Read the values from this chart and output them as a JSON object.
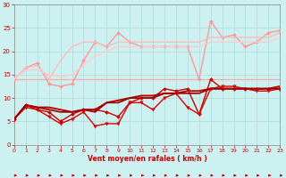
{
  "background_color": "#cdf0f0",
  "grid_color": "#aadddd",
  "xlabel": "Vent moyen/en rafales ( km/h )",
  "xlabel_color": "#cc0000",
  "tick_color": "#cc0000",
  "ylim": [
    0,
    30
  ],
  "xlim": [
    0,
    23
  ],
  "yticks": [
    0,
    5,
    10,
    15,
    20,
    25,
    30
  ],
  "xticks": [
    0,
    1,
    2,
    3,
    4,
    5,
    6,
    7,
    8,
    9,
    10,
    11,
    12,
    13,
    14,
    15,
    16,
    17,
    18,
    19,
    20,
    21,
    22,
    23
  ],
  "series": [
    {
      "x": [
        0,
        1,
        2,
        3,
        4,
        5,
        6,
        7,
        8,
        9,
        10,
        11,
        12,
        13,
        14,
        15,
        16,
        17,
        18,
        19,
        20,
        21,
        22,
        23
      ],
      "y": [
        14,
        14,
        14,
        14,
        14,
        14,
        14,
        14,
        14,
        14,
        14,
        14,
        14,
        14,
        14,
        14,
        14,
        14,
        14,
        14,
        14,
        14,
        14,
        14
      ],
      "color": "#ffaaaa",
      "lw": 0.9,
      "marker": null
    },
    {
      "x": [
        0,
        1,
        2,
        3,
        4,
        5,
        6,
        7,
        8,
        9,
        10,
        11,
        12,
        13,
        14,
        15,
        16,
        17,
        18,
        19,
        20,
        21,
        22,
        23
      ],
      "y": [
        5.5,
        8.5,
        7.5,
        7,
        5,
        6.5,
        7.5,
        7.5,
        7,
        6,
        9,
        10,
        10,
        12,
        11.5,
        12,
        6.5,
        14,
        12,
        12,
        12,
        12,
        12,
        12
      ],
      "color": "#cc0000",
      "lw": 1.0,
      "marker": "D",
      "ms": 2.0
    },
    {
      "x": [
        0,
        1,
        2,
        3,
        4,
        5,
        6,
        7,
        8,
        9,
        10,
        11,
        12,
        13,
        14,
        15,
        16,
        17,
        18,
        19,
        20,
        21,
        22,
        23
      ],
      "y": [
        5.5,
        8,
        7.5,
        6,
        4.5,
        5.5,
        7,
        4,
        4.5,
        4.5,
        9,
        9,
        7.5,
        10,
        11,
        8,
        6.5,
        12,
        12.5,
        12.5,
        12,
        11.5,
        11.5,
        12
      ],
      "color": "#dd0000",
      "lw": 1.0,
      "marker": "v",
      "ms": 2.5
    },
    {
      "x": [
        0,
        1,
        2,
        3,
        4,
        5,
        6,
        7,
        8,
        9,
        10,
        11,
        12,
        13,
        14,
        15,
        16,
        17,
        18,
        19,
        20,
        21,
        22,
        23
      ],
      "y": [
        5.5,
        8.5,
        8,
        8,
        7.5,
        7,
        7.5,
        7.5,
        9,
        9.5,
        10,
        10.5,
        10.5,
        11,
        11,
        11.5,
        11.5,
        12,
        12,
        12,
        12,
        12,
        12,
        12.5
      ],
      "color": "#bb0000",
      "lw": 1.4,
      "marker": null
    },
    {
      "x": [
        0,
        1,
        2,
        3,
        4,
        5,
        6,
        7,
        8,
        9,
        10,
        11,
        12,
        13,
        14,
        15,
        16,
        17,
        18,
        19,
        20,
        21,
        22,
        23
      ],
      "y": [
        5.5,
        8.5,
        8,
        7.5,
        7,
        7,
        7.5,
        7,
        9,
        9,
        10,
        10,
        10,
        11,
        11,
        11,
        11,
        12,
        12,
        12,
        12,
        12,
        12,
        12
      ],
      "color": "#990000",
      "lw": 1.2,
      "marker": null
    },
    {
      "x": [
        0,
        1,
        2,
        3,
        4,
        5,
        6,
        7,
        8,
        9,
        10,
        11,
        12,
        13,
        14,
        15,
        16,
        17,
        18,
        19,
        20,
        21,
        22,
        23
      ],
      "y": [
        14,
        16.5,
        17.5,
        13,
        12.5,
        13,
        18,
        22,
        21,
        24,
        22,
        21,
        21,
        21,
        21,
        21,
        14,
        26.5,
        23,
        23.5,
        21,
        22,
        24,
        24.5
      ],
      "color": "#ff9999",
      "lw": 1.0,
      "marker": "D",
      "ms": 2.0
    },
    {
      "x": [
        0,
        1,
        2,
        3,
        4,
        5,
        6,
        7,
        8,
        9,
        10,
        11,
        12,
        13,
        14,
        15,
        16,
        17,
        18,
        19,
        20,
        21,
        22,
        23
      ],
      "y": [
        14,
        16.5,
        17,
        14,
        18,
        21,
        22,
        22,
        21,
        22,
        22,
        22,
        22,
        22,
        22,
        22,
        22,
        23,
        23,
        23,
        23,
        23,
        23,
        24
      ],
      "color": "#ffbbbb",
      "lw": 1.0,
      "marker": null
    },
    {
      "x": [
        0,
        1,
        2,
        3,
        4,
        5,
        6,
        7,
        8,
        9,
        10,
        11,
        12,
        13,
        14,
        15,
        16,
        17,
        18,
        19,
        20,
        21,
        22,
        23
      ],
      "y": [
        14,
        16,
        16,
        15,
        14.5,
        15,
        17,
        19,
        20,
        21,
        21,
        21,
        21,
        21,
        21,
        21,
        21,
        22,
        22,
        22,
        22,
        22,
        22,
        23
      ],
      "color": "#ffcccc",
      "lw": 1.0,
      "marker": null
    }
  ]
}
